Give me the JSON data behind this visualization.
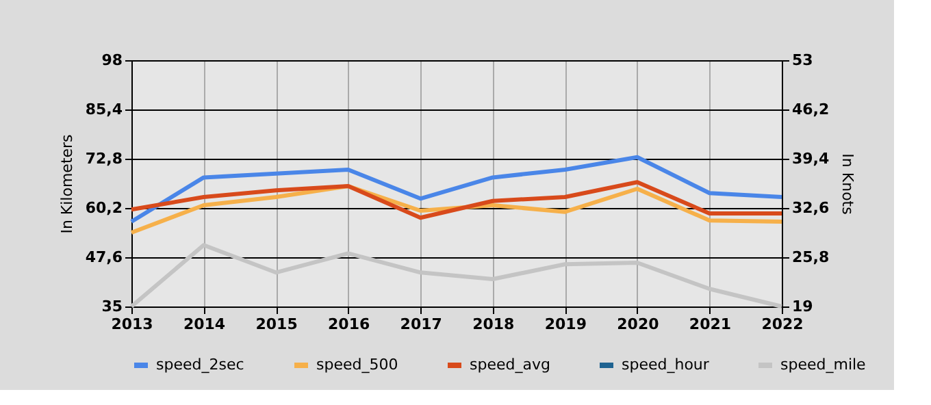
{
  "chart_data": {
    "type": "line",
    "x": [
      2013,
      2014,
      2015,
      2016,
      2017,
      2018,
      2019,
      2020,
      2021,
      2022
    ],
    "xlim": [
      2013,
      2022
    ],
    "xticks": [
      2013,
      2014,
      2015,
      2016,
      2017,
      2018,
      2019,
      2020,
      2021,
      2022
    ],
    "ylabel": "In Kilometers",
    "y2label": "In Knots",
    "ylim": [
      35,
      98
    ],
    "yticks": [
      35,
      {
        "value": 47.6,
        "label": "47,6"
      },
      {
        "value": 60.2,
        "label": "60,2"
      },
      {
        "value": 72.8,
        "label": "72,8"
      },
      {
        "value": 85.4,
        "label": "85,4"
      },
      98
    ],
    "y2lim": [
      19,
      53
    ],
    "y2ticks": [
      19,
      {
        "value": 25.8,
        "label": "25,8"
      },
      {
        "value": 32.6,
        "label": "32,6"
      },
      {
        "value": 39.4,
        "label": "39,4"
      },
      {
        "value": 46.2,
        "label": "46,2"
      },
      53
    ],
    "grid": true,
    "legend": "bottom",
    "marker": "none",
    "line_style": "solid",
    "series": [
      {
        "name": "speed_2sec",
        "color": "#4a86e8",
        "values": [
          56.7,
          68.0,
          69.0,
          70.0,
          62.6,
          68.0,
          70.0,
          73.2,
          64.0,
          63.0
        ]
      },
      {
        "name": "speed_500",
        "color": "#f6b04a",
        "values": [
          53.9,
          60.9,
          63.0,
          65.8,
          59.5,
          60.9,
          59.2,
          65.1,
          57.0,
          56.7
        ]
      },
      {
        "name": "speed_avg",
        "color": "#d84a1b",
        "values": [
          59.8,
          63.0,
          64.7,
          65.8,
          57.7,
          62.0,
          63.0,
          66.8,
          58.8,
          58.8
        ]
      },
      {
        "name": "speed_hour",
        "color": "#1f6391",
        "values": [
          null,
          null,
          null,
          null,
          null,
          null,
          null,
          null,
          null,
          null
        ]
      },
      {
        "name": "speed_mile",
        "color": "#c4c4c4",
        "values": [
          35.0,
          50.7,
          43.7,
          48.6,
          43.7,
          42.0,
          45.8,
          46.2,
          39.5,
          35.0
        ]
      }
    ]
  }
}
